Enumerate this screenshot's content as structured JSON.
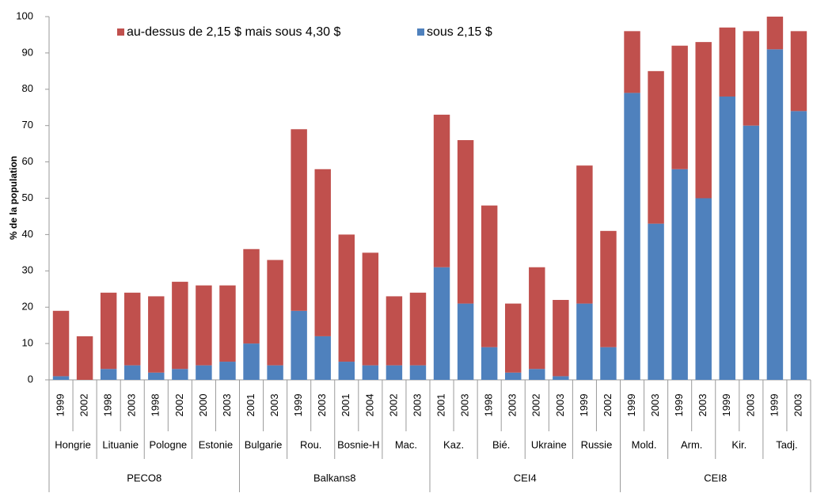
{
  "chart_data": {
    "type": "bar",
    "stacked": true,
    "y_label": "% de la population",
    "categories": [
      "1999",
      "2002",
      "1998",
      "2003",
      "1998",
      "2002",
      "2000",
      "2003",
      "2001",
      "2003",
      "1999",
      "2003",
      "2001",
      "2004",
      "2002",
      "2003",
      "2001",
      "2003",
      "1998",
      "2003",
      "2002",
      "2003",
      "1999",
      "2002",
      "1999",
      "2003",
      "1999",
      "2003",
      "1999",
      "2003",
      "1999",
      "2003"
    ],
    "countries": [
      "Hongrie",
      "Lituanie",
      "Pologne",
      "Estonie",
      "Bulgarie",
      "Rou.",
      "Bosnie-H",
      "Mac.",
      "Kaz.",
      "Bié.",
      "Ukraine",
      "Russie",
      "Mold.",
      "Arm.",
      "Kir.",
      "Tadj."
    ],
    "regions": [
      "PECO8",
      "Balkans8",
      "CEI4",
      "CEI8"
    ],
    "series": [
      {
        "name": "au-dessus de 2,15 $ mais sous 4,30 $",
        "color": "#c0504d",
        "values": [
          18,
          12,
          21,
          20,
          21,
          24,
          22,
          21,
          26,
          29,
          50,
          46,
          35,
          31,
          19,
          20,
          42,
          45,
          39,
          19,
          28,
          21,
          38,
          32,
          17,
          42,
          34,
          43,
          19,
          26,
          9,
          22
        ]
      },
      {
        "name": "sous 2,15 $",
        "color": "#4f81bd",
        "values": [
          1,
          0,
          3,
          4,
          2,
          3,
          4,
          5,
          10,
          4,
          19,
          12,
          5,
          4,
          4,
          4,
          31,
          21,
          9,
          2,
          3,
          1,
          21,
          9,
          79,
          43,
          58,
          50,
          78,
          70,
          91,
          74
        ]
      }
    ],
    "ylim": [
      0,
      100
    ],
    "yticks": [
      0,
      10,
      20,
      30,
      40,
      50,
      60,
      70,
      80,
      90,
      100
    ],
    "legend": "top",
    "grid": false
  }
}
